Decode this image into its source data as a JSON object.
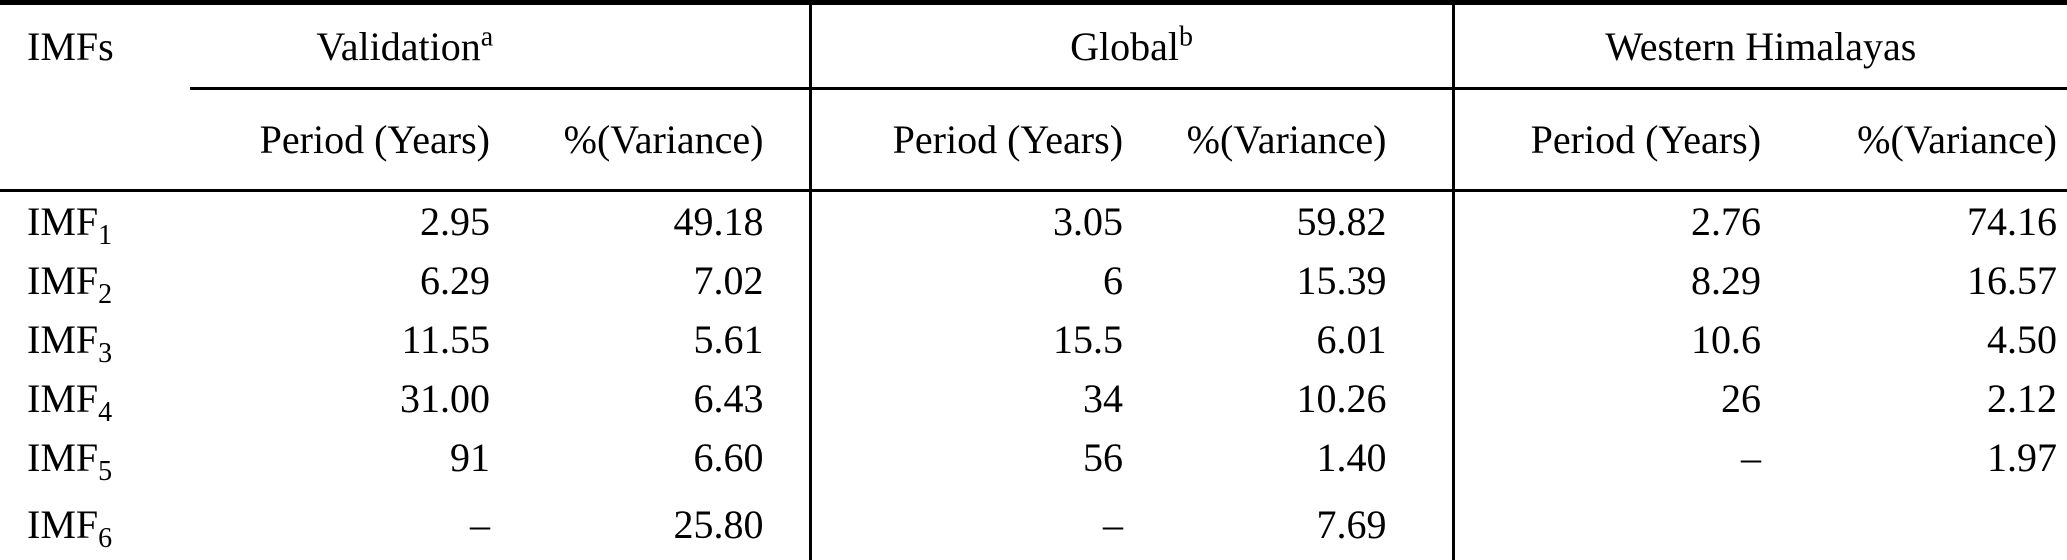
{
  "table": {
    "row_header_label": "IMFs",
    "groups": [
      {
        "label": "Validation",
        "superscript": "a"
      },
      {
        "label": "Global",
        "superscript": "b"
      },
      {
        "label": "Western Himalayas",
        "superscript": ""
      }
    ],
    "sub_headers": {
      "period": "Period (Years)",
      "variance": "%(Variance)"
    },
    "rows": [
      {
        "label": "IMF",
        "sub": "1",
        "cells": [
          "2.95",
          "49.18",
          "3.05",
          "59.82",
          "2.76",
          "74.16"
        ]
      },
      {
        "label": "IMF",
        "sub": "2",
        "cells": [
          "6.29",
          "7.02",
          "6",
          "15.39",
          "8.29",
          "16.57"
        ]
      },
      {
        "label": "IMF",
        "sub": "3",
        "cells": [
          "11.55",
          "5.61",
          "15.5",
          "6.01",
          "10.6",
          "4.50"
        ]
      },
      {
        "label": "IMF",
        "sub": "4",
        "cells": [
          "31.00",
          "6.43",
          "34",
          "10.26",
          "26",
          "2.12"
        ]
      },
      {
        "label": "IMF",
        "sub": "5",
        "cells": [
          "91",
          "6.60",
          "56",
          "1.40",
          "–",
          "1.97"
        ]
      },
      {
        "label": "IMF",
        "sub": "6",
        "cells": [
          "–",
          "25.80",
          "–",
          "7.69",
          "",
          ""
        ]
      }
    ]
  },
  "chart_data": {
    "type": "table",
    "title": "",
    "column_groups": [
      "Validation",
      "Global",
      "Western Himalayas"
    ],
    "columns": [
      "IMFs",
      "Validation Period (Years)",
      "Validation %(Variance)",
      "Global Period (Years)",
      "Global %(Variance)",
      "Western Himalayas Period (Years)",
      "Western Himalayas %(Variance)"
    ],
    "rows": [
      [
        "IMF1",
        2.95,
        49.18,
        3.05,
        59.82,
        2.76,
        74.16
      ],
      [
        "IMF2",
        6.29,
        7.02,
        6,
        15.39,
        8.29,
        16.57
      ],
      [
        "IMF3",
        11.55,
        5.61,
        15.5,
        6.01,
        10.6,
        4.5
      ],
      [
        "IMF4",
        31.0,
        6.43,
        34,
        10.26,
        26,
        2.12
      ],
      [
        "IMF5",
        91,
        6.6,
        56,
        1.4,
        null,
        1.97
      ],
      [
        "IMF6",
        null,
        25.8,
        null,
        7.69,
        null,
        null
      ]
    ]
  }
}
